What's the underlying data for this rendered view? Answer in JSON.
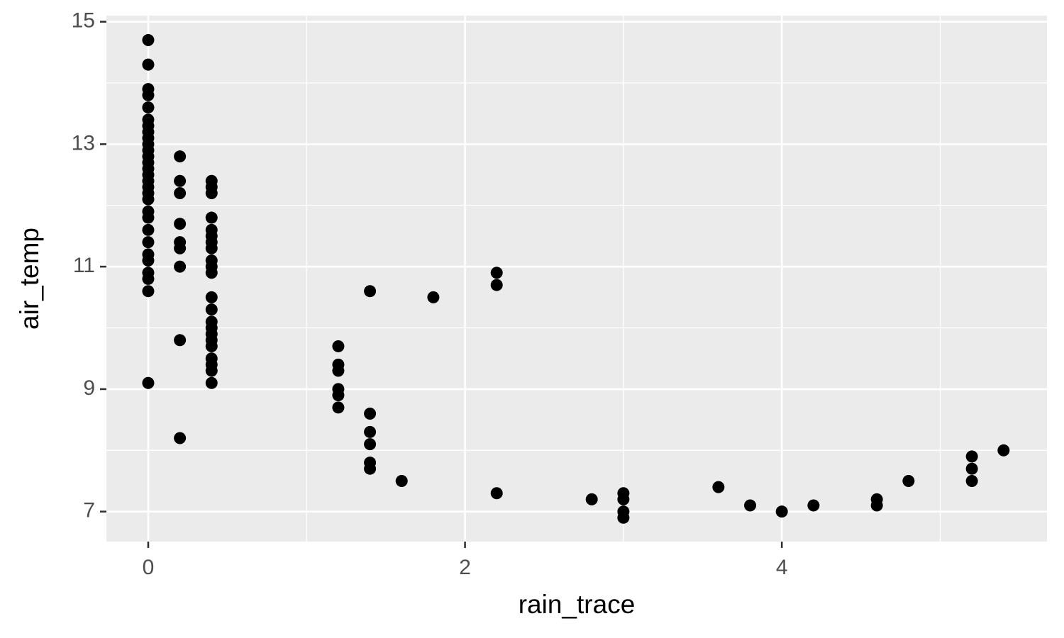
{
  "chart_data": {
    "type": "scatter",
    "x_label": "rain_trace",
    "y_label": "air_temp",
    "x": [
      0,
      0,
      0,
      0,
      0,
      0,
      0,
      0,
      0,
      0,
      0,
      0,
      0,
      0,
      0,
      0,
      0,
      0,
      0,
      0,
      0,
      0,
      0,
      0,
      0,
      0,
      0,
      0,
      0,
      0.2,
      0.2,
      0.2,
      0.2,
      0.2,
      0.2,
      0.2,
      0.2,
      0.2,
      0.4,
      0.4,
      0.4,
      0.4,
      0.4,
      0.4,
      0.4,
      0.4,
      0.4,
      0.4,
      0.4,
      0.4,
      0.4,
      0.4,
      0.4,
      0.4,
      0.4,
      0.4,
      0.4,
      0.4,
      0.4,
      0.4,
      1.2,
      1.2,
      1.2,
      1.2,
      1.2,
      1.2,
      1.4,
      1.4,
      1.4,
      1.4,
      1.4,
      1.4,
      1.6,
      1.8,
      2.2,
      2.2,
      2.2,
      2.8,
      3.0,
      3.0,
      3.0,
      3.0,
      3.6,
      3.8,
      4.0,
      4.2,
      4.6,
      4.6,
      4.8,
      5.2,
      5.2,
      5.2,
      5.4
    ],
    "values": [
      14.7,
      14.3,
      13.9,
      13.8,
      13.6,
      13.4,
      13.3,
      13.2,
      13.1,
      13.0,
      12.9,
      12.8,
      12.7,
      12.6,
      12.5,
      12.4,
      12.3,
      12.2,
      12.1,
      11.9,
      11.8,
      11.6,
      11.4,
      11.2,
      11.1,
      10.9,
      10.8,
      10.6,
      9.1,
      12.8,
      12.4,
      12.2,
      11.7,
      11.4,
      11.3,
      11.0,
      9.8,
      8.2,
      12.4,
      12.3,
      12.2,
      11.8,
      11.6,
      11.5,
      11.4,
      11.3,
      11.1,
      11.0,
      10.9,
      10.5,
      10.3,
      10.1,
      10.0,
      9.9,
      9.8,
      9.7,
      9.5,
      9.4,
      9.3,
      9.1,
      9.7,
      9.4,
      9.3,
      9.0,
      8.9,
      8.7,
      10.6,
      8.6,
      8.3,
      8.1,
      7.8,
      7.7,
      7.5,
      10.5,
      10.9,
      10.7,
      7.3,
      7.2,
      7.3,
      7.2,
      7.0,
      6.9,
      7.4,
      7.1,
      7.0,
      7.1,
      7.2,
      7.1,
      7.5,
      7.9,
      7.7,
      7.5,
      8.0
    ],
    "color": "#000000",
    "xlim": [
      -0.264,
      5.674
    ],
    "xticks": [
      0,
      2,
      4
    ],
    "x_minor_grid": [
      1,
      3,
      5
    ],
    "ylim": [
      6.51,
      15.1
    ],
    "yticks": [
      7,
      9,
      11,
      13,
      15
    ],
    "y_minor_grid": [
      8,
      10,
      12,
      14
    ],
    "grid": true
  }
}
